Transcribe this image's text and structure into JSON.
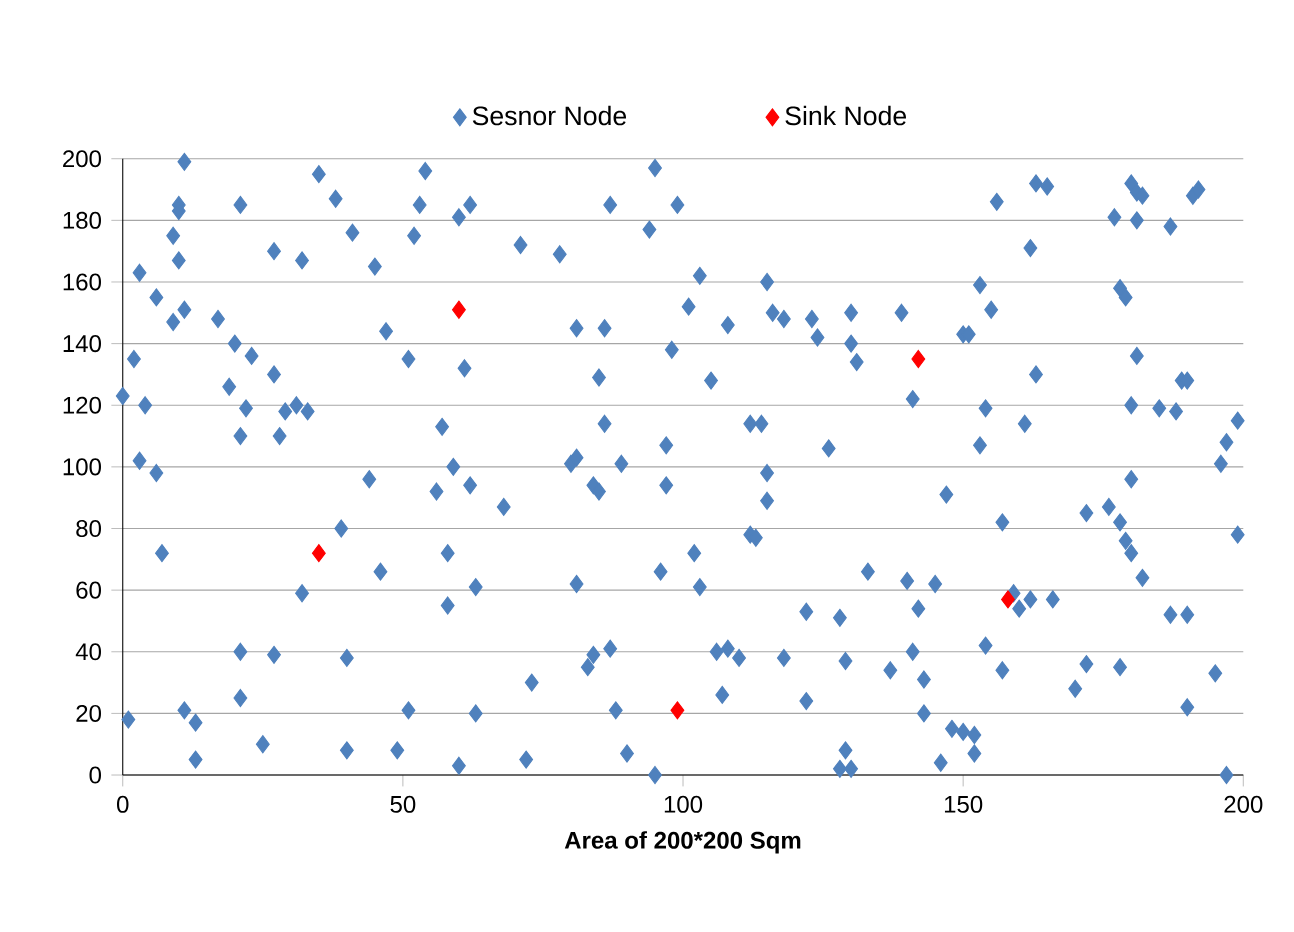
{
  "chart_data": {
    "type": "scatter",
    "xlabel": "Area of 200*200 Sqm",
    "xlim": [
      0,
      200
    ],
    "ylim": [
      0,
      200
    ],
    "xticks": [
      0,
      50,
      100,
      150,
      200
    ],
    "yticks": [
      0,
      20,
      40,
      60,
      80,
      100,
      120,
      140,
      160,
      180,
      200
    ],
    "grid": "y",
    "legend": "top",
    "marker": "diamond",
    "series": [
      {
        "name": "Sesnor Node",
        "color": "#4f81bd",
        "x": [
          0,
          1,
          2,
          3,
          3,
          4,
          6,
          6,
          7,
          9,
          9,
          10,
          10,
          10,
          11,
          11,
          11,
          13,
          13,
          17,
          19,
          20,
          21,
          21,
          21,
          21,
          22,
          23,
          25,
          27,
          27,
          27,
          28,
          29,
          31,
          32,
          32,
          33,
          35,
          38,
          39,
          40,
          40,
          41,
          44,
          45,
          46,
          47,
          49,
          51,
          51,
          52,
          53,
          54,
          56,
          57,
          58,
          58,
          59,
          60,
          60,
          61,
          62,
          62,
          63,
          63,
          68,
          71,
          72,
          73,
          78,
          80,
          81,
          81,
          81,
          83,
          84,
          84,
          85,
          85,
          86,
          86,
          87,
          87,
          88,
          89,
          90,
          94,
          95,
          95,
          96,
          97,
          97,
          98,
          99,
          101,
          102,
          103,
          103,
          105,
          106,
          107,
          108,
          108,
          110,
          112,
          112,
          113,
          114,
          115,
          115,
          115,
          116,
          118,
          118,
          122,
          122,
          123,
          124,
          126,
          128,
          128,
          129,
          129,
          130,
          130,
          130,
          131,
          133,
          137,
          139,
          140,
          141,
          141,
          142,
          143,
          143,
          145,
          146,
          147,
          148,
          150,
          150,
          151,
          152,
          152,
          153,
          153,
          154,
          154,
          155,
          156,
          157,
          157,
          159,
          160,
          161,
          162,
          162,
          163,
          163,
          165,
          166,
          170,
          172,
          172,
          176,
          177,
          178,
          178,
          178,
          179,
          179,
          180,
          180,
          180,
          180,
          181,
          181,
          181,
          182,
          182,
          185,
          187,
          187,
          188,
          189,
          190,
          190,
          190,
          191,
          192,
          195,
          196,
          197,
          197,
          199,
          199
        ],
        "values": [
          123,
          18,
          135,
          163,
          102,
          120,
          155,
          98,
          72,
          147,
          175,
          185,
          167,
          183,
          151,
          199,
          21,
          17,
          5,
          148,
          126,
          140,
          185,
          110,
          40,
          25,
          119,
          136,
          10,
          170,
          130,
          39,
          110,
          118,
          120,
          167,
          59,
          118,
          195,
          187,
          80,
          38,
          8,
          176,
          96,
          165,
          66,
          144,
          8,
          135,
          21,
          175,
          185,
          196,
          92,
          113,
          72,
          55,
          100,
          3,
          181,
          132,
          94,
          185,
          20,
          61,
          87,
          172,
          5,
          30,
          169,
          101,
          62,
          145,
          103,
          35,
          39,
          94,
          129,
          92,
          145,
          114,
          41,
          185,
          21,
          101,
          7,
          177,
          197,
          0,
          66,
          94,
          107,
          138,
          185,
          152,
          72,
          162,
          61,
          128,
          40,
          26,
          41,
          146,
          38,
          114,
          78,
          77,
          114,
          160,
          89,
          98,
          150,
          38,
          148,
          24,
          53,
          148,
          142,
          106,
          51,
          2,
          8,
          37,
          140,
          150,
          2,
          134,
          66,
          34,
          150,
          63,
          122,
          40,
          54,
          20,
          31,
          62,
          4,
          91,
          15,
          143,
          14,
          143,
          13,
          7,
          159,
          107,
          119,
          42,
          151,
          186,
          82,
          34,
          59,
          54,
          114,
          171,
          57,
          130,
          192,
          191,
          57,
          28,
          36,
          85,
          87,
          181,
          158,
          82,
          35,
          155,
          76,
          96,
          120,
          192,
          72,
          136,
          180,
          189,
          64,
          188,
          119,
          178,
          52,
          118,
          128,
          52,
          128,
          22,
          188,
          190,
          33,
          101,
          108,
          0,
          78,
          115
        ]
      },
      {
        "name": "Sink Node",
        "color": "#ff0000",
        "x": [
          35,
          60,
          99,
          142,
          158
        ],
        "values": [
          72,
          151,
          21,
          135,
          57
        ]
      }
    ]
  }
}
